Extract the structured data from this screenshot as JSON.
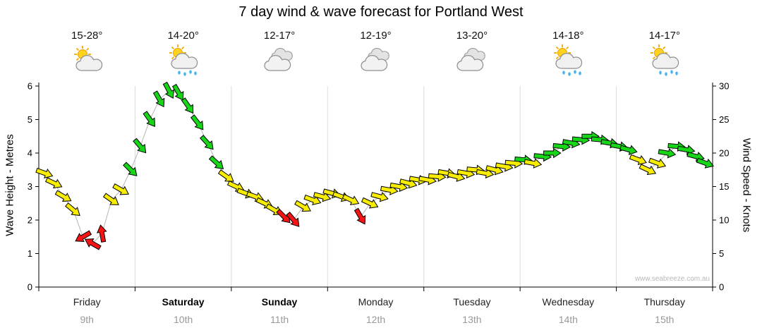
{
  "title": "7 day wind & wave forecast for Portland West",
  "watermark": "www.seabreeze.com.au",
  "left_axis": {
    "label": "Wave Height - Metres",
    "min": 0,
    "max": 6,
    "ticks": [
      0,
      1,
      2,
      3,
      4,
      5,
      6
    ]
  },
  "right_axis": {
    "label": "Wind Speed - Knots",
    "min": 0,
    "max": 30,
    "ticks": [
      0,
      5,
      10,
      15,
      20,
      25,
      30
    ]
  },
  "days": [
    {
      "name": "Friday",
      "date": "9th",
      "temp": "15-28°",
      "icon": "partly-cloudy",
      "bold": false
    },
    {
      "name": "Saturday",
      "date": "10th",
      "temp": "14-20°",
      "icon": "showers",
      "bold": true
    },
    {
      "name": "Sunday",
      "date": "11th",
      "temp": "12-17°",
      "icon": "cloudy",
      "bold": true
    },
    {
      "name": "Monday",
      "date": "12th",
      "temp": "12-19°",
      "icon": "cloudy",
      "bold": false
    },
    {
      "name": "Tuesday",
      "date": "13th",
      "temp": "13-20°",
      "icon": "cloudy",
      "bold": false
    },
    {
      "name": "Wednesday",
      "date": "14th",
      "temp": "14-18°",
      "icon": "showers",
      "bold": false
    },
    {
      "name": "Thursday",
      "date": "15th",
      "temp": "14-17°",
      "icon": "showers",
      "bold": false
    }
  ],
  "chart_data": {
    "type": "scatter",
    "subtype": "wind-arrow-timeseries",
    "title": "7 day wind & wave forecast for Portland West",
    "categories": [
      "Friday 9th",
      "Saturday 10th",
      "Sunday 11th",
      "Monday 12th",
      "Tuesday 13th",
      "Wednesday 14th",
      "Thursday 15th"
    ],
    "ylabel_left": "Wave Height - Metres",
    "ylabel_right": "Wind Speed - Knots",
    "ylim_left": [
      0,
      6
    ],
    "ylim_right": [
      0,
      30
    ],
    "grid": "vertical-day-boundaries",
    "x_start_day": 0.06,
    "x_step_day": 0.0995,
    "point_format": [
      "wind_speed_knots",
      "strength_color",
      "direction_deg_clockwise_from_east"
    ],
    "colors": {
      "y": "#f8ec00",
      "g": "#17d517",
      "r": "#f51414"
    },
    "points": [
      [
        17,
        "y",
        20
      ],
      [
        15.5,
        "y",
        25
      ],
      [
        13.5,
        "y",
        30
      ],
      [
        11.5,
        "y",
        40
      ],
      [
        7.5,
        "r",
        150
      ],
      [
        6.5,
        "r",
        -150
      ],
      [
        8,
        "r",
        -100
      ],
      [
        13,
        "y",
        35
      ],
      [
        14.5,
        "y",
        30
      ],
      [
        17.5,
        "g",
        45
      ],
      [
        21,
        "g",
        50
      ],
      [
        25,
        "g",
        55
      ],
      [
        28,
        "g",
        60
      ],
      [
        29.3,
        "g",
        62
      ],
      [
        29,
        "g",
        60
      ],
      [
        27,
        "g",
        55
      ],
      [
        24.5,
        "g",
        52
      ],
      [
        21.5,
        "g",
        48
      ],
      [
        18.5,
        "g",
        42
      ],
      [
        16.5,
        "y",
        35
      ],
      [
        15,
        "y",
        25
      ],
      [
        14,
        "y",
        20
      ],
      [
        13.5,
        "y",
        20
      ],
      [
        12.5,
        "y",
        25
      ],
      [
        11.5,
        "y",
        30
      ],
      [
        10.5,
        "r",
        45
      ],
      [
        10,
        "r",
        50
      ],
      [
        12,
        "y",
        30
      ],
      [
        13,
        "y",
        20
      ],
      [
        13.5,
        "y",
        15
      ],
      [
        14,
        "y",
        15
      ],
      [
        13.5,
        "y",
        20
      ],
      [
        13,
        "y",
        25
      ],
      [
        10.5,
        "r",
        60
      ],
      [
        12.5,
        "y",
        25
      ],
      [
        13.5,
        "y",
        15
      ],
      [
        14.5,
        "y",
        10
      ],
      [
        15,
        "y",
        10
      ],
      [
        15.5,
        "y",
        15
      ],
      [
        16,
        "y",
        10
      ],
      [
        16,
        "y",
        10
      ],
      [
        16.5,
        "y",
        5
      ],
      [
        17,
        "y",
        10
      ],
      [
        16.5,
        "y",
        15
      ],
      [
        17,
        "y",
        10
      ],
      [
        17.5,
        "y",
        5
      ],
      [
        17,
        "y",
        10
      ],
      [
        17.5,
        "y",
        15
      ],
      [
        18,
        "y",
        10
      ],
      [
        18.5,
        "y",
        5
      ],
      [
        19,
        "g",
        5
      ],
      [
        18.5,
        "y",
        10
      ],
      [
        19.5,
        "g",
        5
      ],
      [
        20,
        "g",
        0
      ],
      [
        21,
        "g",
        5
      ],
      [
        21.5,
        "g",
        10
      ],
      [
        22,
        "g",
        5
      ],
      [
        22.5,
        "g",
        0
      ],
      [
        22,
        "g",
        5
      ],
      [
        21.5,
        "g",
        10
      ],
      [
        21,
        "g",
        10
      ],
      [
        20.5,
        "g",
        15
      ],
      [
        19,
        "y",
        20
      ],
      [
        17.5,
        "y",
        25
      ],
      [
        18.5,
        "y",
        20
      ],
      [
        20,
        "g",
        10
      ],
      [
        21,
        "g",
        5
      ],
      [
        20.5,
        "g",
        10
      ],
      [
        19.5,
        "g",
        15
      ],
      [
        18.5,
        "g",
        20
      ]
    ]
  }
}
